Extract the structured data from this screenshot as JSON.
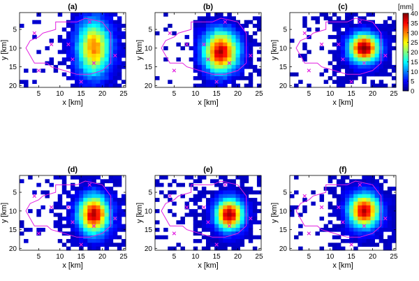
{
  "chart_data": {
    "type": "heatmap",
    "description_units": "mm",
    "grid": {
      "x_cells": 25,
      "y_cells": 20
    },
    "xlim": [
      0.5,
      25.5
    ],
    "ylim": [
      0.5,
      20.5
    ],
    "y_reversed": true,
    "xticks": [
      5,
      10,
      15,
      20,
      25
    ],
    "yticks": [
      5,
      10,
      15,
      20
    ],
    "xlabel": "x [km]",
    "ylabel": "y [km]",
    "colorbar": {
      "unit_label": "[mm]",
      "min": 0,
      "max": 40,
      "ticks": [
        0,
        5,
        10,
        15,
        20,
        25,
        30,
        35,
        40
      ],
      "colormap": "jet"
    },
    "catchment_color": "#e21fe0",
    "marker_color": "#e21fe0",
    "catchment_outline": [
      [
        6,
        6
      ],
      [
        9,
        5
      ],
      [
        9,
        3
      ],
      [
        14,
        3
      ],
      [
        16,
        2
      ],
      [
        20,
        3
      ],
      [
        22,
        6
      ],
      [
        22,
        14
      ],
      [
        20,
        16
      ],
      [
        17,
        17
      ],
      [
        14,
        17
      ],
      [
        11,
        16
      ],
      [
        8,
        15
      ],
      [
        7,
        14
      ],
      [
        4,
        14
      ],
      [
        3,
        12
      ],
      [
        2,
        10
      ],
      [
        3,
        8
      ],
      [
        5,
        7
      ]
    ],
    "gauges": [
      [
        4,
        6
      ],
      [
        17,
        3
      ],
      [
        23,
        12
      ],
      [
        13,
        13
      ],
      [
        15,
        19
      ],
      [
        5,
        16
      ],
      [
        18,
        14
      ],
      [
        8,
        9
      ],
      [
        12,
        9
      ]
    ],
    "panels": [
      {
        "label": "(a)",
        "center": [
          18,
          10
        ],
        "peak": 28,
        "sx": 2.6,
        "sy": 5.0,
        "bg": 2,
        "noise": 2.5,
        "empty_threshold": 2.5
      },
      {
        "label": "(b)",
        "center": [
          16,
          11
        ],
        "peak": 36,
        "sx": 2.8,
        "sy": 3.8,
        "bg": 1.5,
        "noise": 2.5,
        "empty_threshold": 2.2
      },
      {
        "label": "(c)",
        "center": [
          18,
          10
        ],
        "peak": 38,
        "sx": 2.4,
        "sy": 2.6,
        "bg": 2,
        "noise": 2.0,
        "empty_threshold": 2.2
      },
      {
        "label": "(d)",
        "center": [
          18,
          11
        ],
        "peak": 36,
        "sx": 2.4,
        "sy": 3.4,
        "bg": 2,
        "noise": 2.5,
        "empty_threshold": 2.3
      },
      {
        "label": "(e)",
        "center": [
          18,
          11
        ],
        "peak": 37,
        "sx": 2.2,
        "sy": 2.8,
        "bg": 2,
        "noise": 2.0,
        "empty_threshold": 2.2
      },
      {
        "label": "(f)",
        "center": [
          18,
          10
        ],
        "peak": 36,
        "sx": 2.4,
        "sy": 3.0,
        "bg": 2,
        "noise": 2.0,
        "empty_threshold": 2.2
      }
    ]
  }
}
